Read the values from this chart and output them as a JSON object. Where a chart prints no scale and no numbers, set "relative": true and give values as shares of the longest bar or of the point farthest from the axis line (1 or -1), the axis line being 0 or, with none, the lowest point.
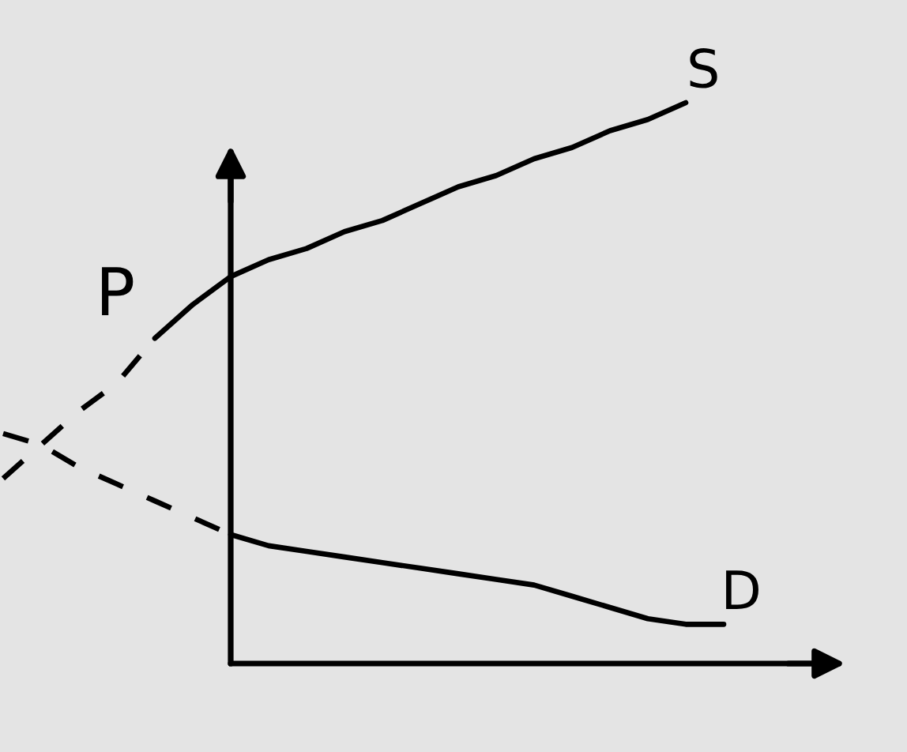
{
  "chart_data": {
    "type": "line",
    "ylabel": "P",
    "relative": true,
    "categories": [
      null,
      null,
      null,
      null,
      null,
      null,
      null,
      null,
      null,
      null,
      null,
      null,
      null,
      null,
      null,
      null,
      null,
      null,
      null,
      null
    ],
    "series": [
      {
        "name": "S",
        "color": "#000000",
        "values": [
          null,
          null,
          null,
          null,
          0.58,
          0.64,
          0.69,
          0.72,
          0.74,
          0.77,
          0.79,
          0.82,
          0.85,
          0.87,
          0.9,
          0.92,
          0.95,
          0.97,
          1.0,
          null
        ]
      },
      {
        "name": "D",
        "color": "#000000",
        "values": [
          null,
          null,
          null,
          null,
          null,
          null,
          0.23,
          0.21,
          0.2,
          0.19,
          0.18,
          0.17,
          0.16,
          0.15,
          0.14,
          0.12,
          0.1,
          0.08,
          0.07,
          0.07
        ]
      },
      {
        "color": "#000000",
        "line_style": "dashed",
        "values": [
          0.33,
          0.39,
          0.45,
          0.5,
          0.58,
          null,
          null,
          null,
          null,
          null,
          null,
          null,
          null,
          null,
          null,
          null,
          null,
          null,
          null,
          null
        ]
      },
      {
        "color": "#000000",
        "line_style": "dashed",
        "values": [
          0.41,
          0.39,
          0.35,
          0.32,
          0.29,
          0.26,
          0.23,
          null,
          null,
          null,
          null,
          null,
          null,
          null,
          null,
          null,
          null,
          null,
          null,
          null
        ]
      }
    ],
    "line_style": "solid"
  }
}
